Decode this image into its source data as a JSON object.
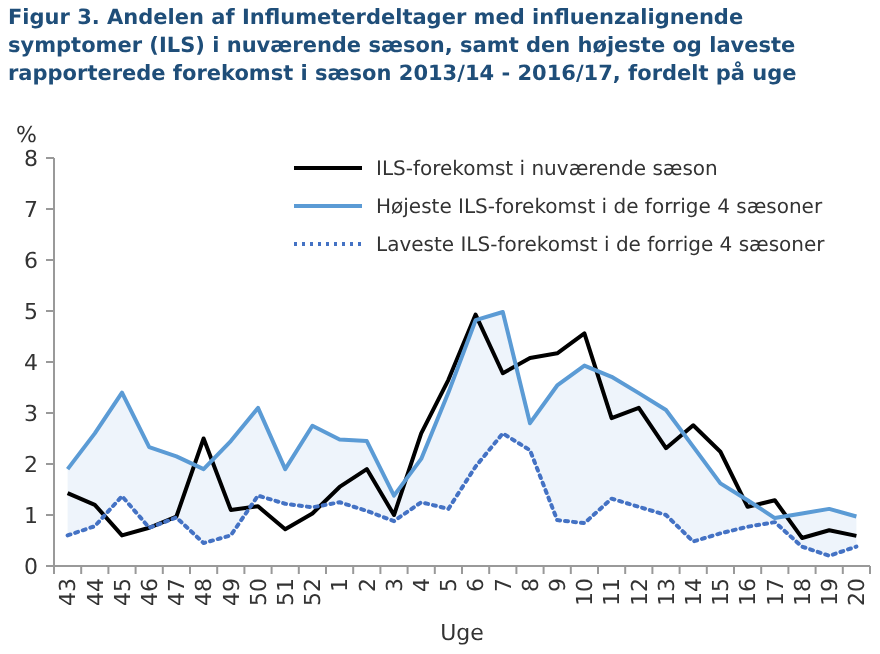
{
  "chart_data": {
    "type": "line",
    "title": "Figur 3. Andelen af Influmeterdeltager med influenzalignende symptomer (ILS) i nuværende sæson, samt den højeste og laveste rapporterede forekomst i sæson 2013/14 - 2016/17, fordelt på uge",
    "xlabel": "Uge",
    "ylabel": "%",
    "categories": [
      "43",
      "44",
      "45",
      "46",
      "47",
      "48",
      "49",
      "50",
      "51",
      "52",
      "1",
      "2",
      "3",
      "4",
      "5",
      "6",
      "7",
      "8",
      "9",
      "10",
      "11",
      "12",
      "13",
      "14",
      "15",
      "16",
      "17",
      "18",
      "19",
      "20"
    ],
    "series": [
      {
        "name": "ILS-forekomst i nuværende sæson",
        "color": "#000000",
        "line_style": "solid",
        "values": [
          1.43,
          1.2,
          0.6,
          0.75,
          0.97,
          2.5,
          1.1,
          1.17,
          0.72,
          1.03,
          1.55,
          1.9,
          1.0,
          2.6,
          3.65,
          4.93,
          3.78,
          4.08,
          4.17,
          4.56,
          2.9,
          3.1,
          2.31,
          2.76,
          2.24,
          1.16,
          1.29,
          0.55,
          0.7,
          0.59
        ]
      },
      {
        "name": "Højeste ILS-forekomst i de forrige 4 sæsoner",
        "color": "#5b9bd5",
        "line_style": "solid",
        "values": [
          1.9,
          2.6,
          3.4,
          2.33,
          2.15,
          1.9,
          2.45,
          3.1,
          1.9,
          2.75,
          2.48,
          2.45,
          1.38,
          2.1,
          3.4,
          4.82,
          4.98,
          2.8,
          3.54,
          3.93,
          3.71,
          3.39,
          3.06,
          2.34,
          1.62,
          1.29,
          0.94,
          1.03,
          1.12,
          0.97
        ],
        "upper": [
          1.9,
          2.6,
          3.4,
          2.33,
          2.15,
          1.9,
          2.45,
          3.1,
          1.9,
          2.75,
          2.48,
          2.45,
          1.38,
          2.1,
          3.4,
          4.82,
          4.98,
          2.8,
          3.54,
          3.93,
          3.71,
          3.39,
          3.06,
          2.34,
          1.62,
          1.29,
          0.94,
          1.03,
          1.12,
          0.97
        ],
        "lower": [
          0.6,
          0.78,
          1.37,
          0.75,
          0.95,
          0.45,
          0.6,
          1.38,
          1.22,
          1.15,
          1.25,
          1.08,
          0.88,
          1.25,
          1.12,
          1.95,
          2.6,
          2.27,
          0.9,
          0.84,
          1.32,
          1.16,
          1.0,
          0.48,
          0.64,
          0.77,
          0.86,
          0.38,
          0.2,
          0.38
        ]
      },
      {
        "name": "Laveste ILS-forekomst i de forrige 4 sæsoner",
        "color": "#4472c4",
        "line_style": "dotted",
        "values": [
          0.6,
          0.78,
          1.37,
          0.75,
          0.95,
          0.45,
          0.6,
          1.38,
          1.22,
          1.15,
          1.25,
          1.08,
          0.88,
          1.25,
          1.12,
          1.95,
          2.6,
          2.27,
          0.9,
          0.84,
          1.32,
          1.16,
          1.0,
          0.48,
          0.64,
          0.77,
          0.86,
          0.38,
          0.2,
          0.38
        ]
      }
    ],
    "ylim": [
      0,
      8
    ],
    "yticks": [
      0,
      1,
      2,
      3,
      4,
      5,
      6,
      7,
      8
    ],
    "grid": false,
    "legend": "top right",
    "marker": "none"
  }
}
